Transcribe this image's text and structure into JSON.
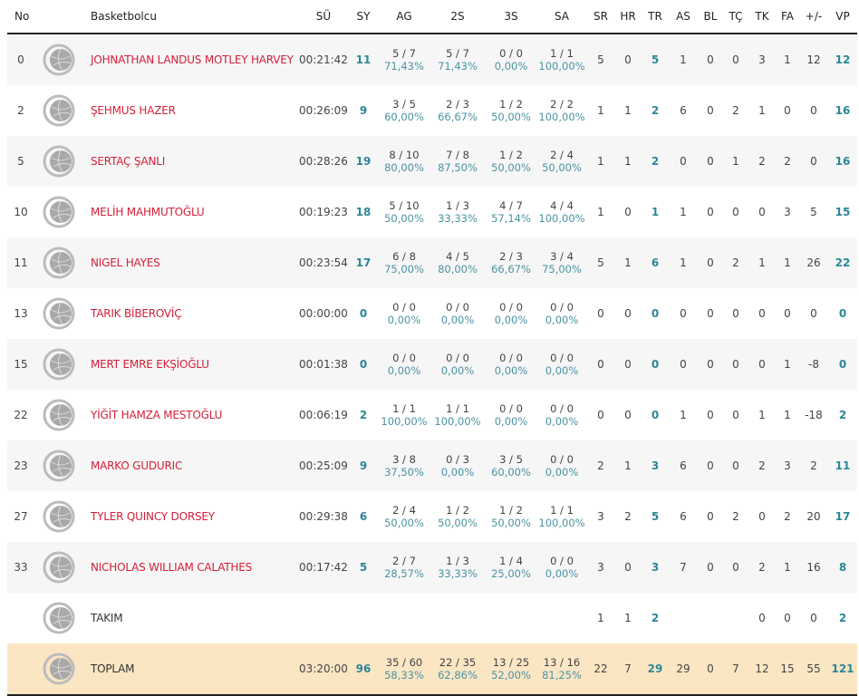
{
  "headers": {
    "no": "No",
    "player": "Basketbolcu",
    "min": "SÜ",
    "pts": "SY",
    "fg": "AG",
    "p2": "2S",
    "p3": "3S",
    "ft": "SA",
    "oreb": "SR",
    "dreb": "HR",
    "reb": "TR",
    "ast": "AS",
    "blk": "BL",
    "stl": "TÇ",
    "to": "TK",
    "pf": "FA",
    "pm": "+/-",
    "eff": "VP"
  },
  "rows": [
    {
      "no": "0",
      "name": "JOHNATHAN LANDUS MOTLEY HARVEY",
      "min": "00:21:42",
      "pts": "11",
      "fg": "5 / 7",
      "fgp": "71,43%",
      "p2": "5 / 7",
      "p2p": "71,43%",
      "p3": "0 / 0",
      "p3p": "0,00%",
      "ft": "1 / 1",
      "ftp": "100,00%",
      "oreb": "5",
      "dreb": "0",
      "reb": "5",
      "ast": "1",
      "blk": "0",
      "stl": "0",
      "to": "3",
      "pf": "1",
      "pm": "12",
      "eff": "12"
    },
    {
      "no": "2",
      "name": "ŞEHMUS HAZER",
      "min": "00:26:09",
      "pts": "9",
      "fg": "3 / 5",
      "fgp": "60,00%",
      "p2": "2 / 3",
      "p2p": "66,67%",
      "p3": "1 / 2",
      "p3p": "50,00%",
      "ft": "2 / 2",
      "ftp": "100,00%",
      "oreb": "1",
      "dreb": "1",
      "reb": "2",
      "ast": "6",
      "blk": "0",
      "stl": "2",
      "to": "1",
      "pf": "0",
      "pm": "0",
      "eff": "16"
    },
    {
      "no": "5",
      "name": "SERTAÇ ŞANLI",
      "min": "00:28:26",
      "pts": "19",
      "fg": "8 / 10",
      "fgp": "80,00%",
      "p2": "7 / 8",
      "p2p": "87,50%",
      "p3": "1 / 2",
      "p3p": "50,00%",
      "ft": "2 / 4",
      "ftp": "50,00%",
      "oreb": "1",
      "dreb": "1",
      "reb": "2",
      "ast": "0",
      "blk": "0",
      "stl": "1",
      "to": "2",
      "pf": "2",
      "pm": "0",
      "eff": "16"
    },
    {
      "no": "10",
      "name": "MELİH MAHMUTOĞLU",
      "min": "00:19:23",
      "pts": "18",
      "fg": "5 / 10",
      "fgp": "50,00%",
      "p2": "1 / 3",
      "p2p": "33,33%",
      "p3": "4 / 7",
      "p3p": "57,14%",
      "ft": "4 / 4",
      "ftp": "100,00%",
      "oreb": "1",
      "dreb": "0",
      "reb": "1",
      "ast": "1",
      "blk": "0",
      "stl": "0",
      "to": "0",
      "pf": "3",
      "pm": "5",
      "eff": "15"
    },
    {
      "no": "11",
      "name": "NIGEL HAYES",
      "min": "00:23:54",
      "pts": "17",
      "fg": "6 / 8",
      "fgp": "75,00%",
      "p2": "4 / 5",
      "p2p": "80,00%",
      "p3": "2 / 3",
      "p3p": "66,67%",
      "ft": "3 / 4",
      "ftp": "75,00%",
      "oreb": "5",
      "dreb": "1",
      "reb": "6",
      "ast": "1",
      "blk": "0",
      "stl": "2",
      "to": "1",
      "pf": "1",
      "pm": "26",
      "eff": "22"
    },
    {
      "no": "13",
      "name": "TARIK BİBEROVİÇ",
      "min": "00:00:00",
      "pts": "0",
      "fg": "0 / 0",
      "fgp": "0,00%",
      "p2": "0 / 0",
      "p2p": "0,00%",
      "p3": "0 / 0",
      "p3p": "0,00%",
      "ft": "0 / 0",
      "ftp": "0,00%",
      "oreb": "0",
      "dreb": "0",
      "reb": "0",
      "ast": "0",
      "blk": "0",
      "stl": "0",
      "to": "0",
      "pf": "0",
      "pm": "0",
      "eff": "0"
    },
    {
      "no": "15",
      "name": "MERT EMRE EKŞİOĞLU",
      "min": "00:01:38",
      "pts": "0",
      "fg": "0 / 0",
      "fgp": "0,00%",
      "p2": "0 / 0",
      "p2p": "0,00%",
      "p3": "0 / 0",
      "p3p": "0,00%",
      "ft": "0 / 0",
      "ftp": "0,00%",
      "oreb": "0",
      "dreb": "0",
      "reb": "0",
      "ast": "0",
      "blk": "0",
      "stl": "0",
      "to": "0",
      "pf": "1",
      "pm": "-8",
      "eff": "0"
    },
    {
      "no": "22",
      "name": "YİĞİT HAMZA MESTOĞLU",
      "min": "00:06:19",
      "pts": "2",
      "fg": "1 / 1",
      "fgp": "100,00%",
      "p2": "1 / 1",
      "p2p": "100,00%",
      "p3": "0 / 0",
      "p3p": "0,00%",
      "ft": "0 / 0",
      "ftp": "0,00%",
      "oreb": "0",
      "dreb": "0",
      "reb": "0",
      "ast": "1",
      "blk": "0",
      "stl": "0",
      "to": "1",
      "pf": "1",
      "pm": "-18",
      "eff": "2"
    },
    {
      "no": "23",
      "name": "MARKO GUDURIC",
      "min": "00:25:09",
      "pts": "9",
      "fg": "3 / 8",
      "fgp": "37,50%",
      "p2": "0 / 3",
      "p2p": "0,00%",
      "p3": "3 / 5",
      "p3p": "60,00%",
      "ft": "0 / 0",
      "ftp": "0,00%",
      "oreb": "2",
      "dreb": "1",
      "reb": "3",
      "ast": "6",
      "blk": "0",
      "stl": "0",
      "to": "2",
      "pf": "3",
      "pm": "2",
      "eff": "11"
    },
    {
      "no": "27",
      "name": "TYLER QUINCY DORSEY",
      "min": "00:29:38",
      "pts": "6",
      "fg": "2 / 4",
      "fgp": "50,00%",
      "p2": "1 / 2",
      "p2p": "50,00%",
      "p3": "1 / 2",
      "p3p": "50,00%",
      "ft": "1 / 1",
      "ftp": "100,00%",
      "oreb": "3",
      "dreb": "2",
      "reb": "5",
      "ast": "6",
      "blk": "0",
      "stl": "2",
      "to": "0",
      "pf": "2",
      "pm": "20",
      "eff": "17"
    },
    {
      "no": "33",
      "name": "NICHOLAS WILLIAM CALATHES",
      "min": "00:17:42",
      "pts": "5",
      "fg": "2 / 7",
      "fgp": "28,57%",
      "p2": "1 / 3",
      "p2p": "33,33%",
      "p3": "1 / 4",
      "p3p": "25,00%",
      "ft": "0 / 0",
      "ftp": "0,00%",
      "oreb": "3",
      "dreb": "0",
      "reb": "3",
      "ast": "7",
      "blk": "0",
      "stl": "0",
      "to": "2",
      "pf": "1",
      "pm": "16",
      "eff": "8"
    },
    {
      "type": "team",
      "name": "TAKIM",
      "oreb": "1",
      "dreb": "1",
      "reb": "2",
      "to": "0",
      "pf": "0",
      "pm": "0",
      "eff": "2"
    },
    {
      "type": "total",
      "name": "TOPLAM",
      "min": "03:20:00",
      "pts": "96",
      "fg": "35 / 60",
      "fgp": "58,33%",
      "p2": "22 / 35",
      "p2p": "62,86%",
      "p3": "13 / 25",
      "p3p": "52,00%",
      "ft": "13 / 16",
      "ftp": "81,25%",
      "oreb": "22",
      "dreb": "7",
      "reb": "29",
      "ast": "29",
      "blk": "0",
      "stl": "7",
      "to": "12",
      "pf": "15",
      "pm": "55",
      "eff": "121"
    }
  ]
}
